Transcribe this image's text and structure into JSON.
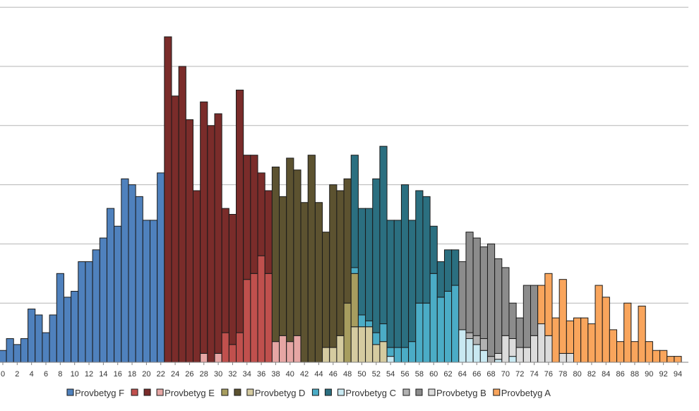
{
  "chart_data": {
    "type": "bar",
    "stacked": true,
    "grid": true,
    "legend_position": "bottom",
    "x_ticks": [
      "0",
      "2",
      "4",
      "6",
      "8",
      "10",
      "12",
      "14",
      "16",
      "18",
      "20",
      "22",
      "24",
      "26",
      "28",
      "30",
      "32",
      "34",
      "36",
      "38",
      "40",
      "42",
      "44",
      "46",
      "48",
      "50",
      "52",
      "54",
      "56",
      "58",
      "60",
      "62",
      "64",
      "66",
      "68",
      "70",
      "72",
      "74",
      "76",
      "78",
      "80",
      "82",
      "84",
      "86",
      "88",
      "90",
      "92",
      "94"
    ],
    "ylim": [
      0,
      11
    ],
    "y_gridlines": [
      1,
      2,
      3,
      4,
      5,
      6
    ],
    "series": [
      {
        "name": "Provbetyg F",
        "color": "#4f81bd",
        "legend_index": 0
      },
      {
        "name": "",
        "color": "#c0504d",
        "legend_index": 1
      },
      {
        "name": "",
        "color": "#7a2c2a",
        "legend_index": 2
      },
      {
        "name": "Provbetyg E",
        "color": "#e6a6a4",
        "legend_index": 3
      },
      {
        "name": "",
        "color": "#a79d5f",
        "legend_index": 4
      },
      {
        "name": "",
        "color": "#5c5230",
        "legend_index": 5
      },
      {
        "name": "Provbetyg D",
        "color": "#d5cba0",
        "legend_index": 6
      },
      {
        "name": "",
        "color": "#4bacc6",
        "legend_index": 7
      },
      {
        "name": "",
        "color": "#2b6f80",
        "legend_index": 8
      },
      {
        "name": "Provbetyg C",
        "color": "#c9e9f2",
        "legend_index": 9
      },
      {
        "name": "",
        "color": "#b2b2b2",
        "legend_index": 10
      },
      {
        "name": "",
        "color": "#8c8c8c",
        "legend_index": 11
      },
      {
        "name": "Provbetyg B",
        "color": "#dcdcdc",
        "legend_index": 12
      },
      {
        "name": "Provbetyg A",
        "color": "#f9a55c",
        "legend_index": 13
      }
    ],
    "bars": [
      {
        "x": 0,
        "s": [
          [
            0,
            0.2
          ]
        ]
      },
      {
        "x": 1,
        "s": [
          [
            0,
            0.4
          ]
        ]
      },
      {
        "x": 2,
        "s": [
          [
            0,
            0.3
          ]
        ]
      },
      {
        "x": 3,
        "s": [
          [
            0,
            0.4
          ]
        ]
      },
      {
        "x": 4,
        "s": [
          [
            0,
            0.9
          ]
        ]
      },
      {
        "x": 5,
        "s": [
          [
            0,
            0.8
          ]
        ]
      },
      {
        "x": 6,
        "s": [
          [
            0,
            0.5
          ]
        ]
      },
      {
        "x": 7,
        "s": [
          [
            0,
            0.8
          ]
        ]
      },
      {
        "x": 8,
        "s": [
          [
            0,
            1.5
          ]
        ]
      },
      {
        "x": 9,
        "s": [
          [
            0,
            1.1
          ]
        ]
      },
      {
        "x": 10,
        "s": [
          [
            0,
            1.2
          ]
        ]
      },
      {
        "x": 11,
        "s": [
          [
            0,
            1.7
          ]
        ]
      },
      {
        "x": 12,
        "s": [
          [
            0,
            1.7
          ]
        ]
      },
      {
        "x": 13,
        "s": [
          [
            0,
            1.9
          ]
        ]
      },
      {
        "x": 14,
        "s": [
          [
            0,
            2.1
          ]
        ]
      },
      {
        "x": 15,
        "s": [
          [
            0,
            2.6
          ]
        ]
      },
      {
        "x": 16,
        "s": [
          [
            0,
            2.3
          ]
        ]
      },
      {
        "x": 17,
        "s": [
          [
            0,
            3.1
          ]
        ]
      },
      {
        "x": 18,
        "s": [
          [
            0,
            3.0
          ]
        ]
      },
      {
        "x": 19,
        "s": [
          [
            0,
            2.8
          ]
        ]
      },
      {
        "x": 20,
        "s": [
          [
            0,
            2.4
          ]
        ]
      },
      {
        "x": 21,
        "s": [
          [
            0,
            2.4
          ]
        ]
      },
      {
        "x": 22,
        "s": [
          [
            0,
            3.2
          ]
        ]
      },
      {
        "x": 23,
        "s": [
          [
            2,
            5.5
          ]
        ]
      },
      {
        "x": 24,
        "s": [
          [
            2,
            4.5
          ]
        ]
      },
      {
        "x": 25,
        "s": [
          [
            2,
            5.0
          ]
        ]
      },
      {
        "x": 26,
        "s": [
          [
            2,
            4.1
          ]
        ]
      },
      {
        "x": 27,
        "s": [
          [
            2,
            2.9
          ]
        ]
      },
      {
        "x": 28,
        "s": [
          [
            3,
            0.15
          ],
          [
            2,
            4.25
          ]
        ]
      },
      {
        "x": 29,
        "s": [
          [
            2,
            4.0
          ]
        ]
      },
      {
        "x": 30,
        "s": [
          [
            3,
            0.15
          ],
          [
            2,
            4.05
          ]
        ]
      },
      {
        "x": 31,
        "s": [
          [
            1,
            0.5
          ],
          [
            2,
            2.1
          ]
        ]
      },
      {
        "x": 32,
        "s": [
          [
            1,
            0.3
          ],
          [
            2,
            2.2
          ]
        ]
      },
      {
        "x": 33,
        "s": [
          [
            1,
            0.5
          ],
          [
            2,
            4.1
          ]
        ]
      },
      {
        "x": 34,
        "s": [
          [
            1,
            1.4
          ],
          [
            2,
            2.1
          ]
        ]
      },
      {
        "x": 35,
        "s": [
          [
            1,
            1.5
          ],
          [
            2,
            2.0
          ]
        ]
      },
      {
        "x": 36,
        "s": [
          [
            1,
            1.8
          ],
          [
            2,
            1.4
          ]
        ]
      },
      {
        "x": 37,
        "s": [
          [
            1,
            1.5
          ],
          [
            2,
            1.4
          ]
        ]
      },
      {
        "x": 38,
        "s": [
          [
            3,
            0.35
          ],
          [
            5,
            2.95
          ]
        ]
      },
      {
        "x": 39,
        "s": [
          [
            3,
            0.45
          ],
          [
            5,
            2.35
          ]
        ]
      },
      {
        "x": 40,
        "s": [
          [
            3,
            0.35
          ],
          [
            5,
            3.1
          ]
        ]
      },
      {
        "x": 41,
        "s": [
          [
            3,
            0.45
          ],
          [
            5,
            2.8
          ]
        ]
      },
      {
        "x": 42,
        "s": [
          [
            5,
            2.7
          ]
        ]
      },
      {
        "x": 43,
        "s": [
          [
            5,
            3.5
          ]
        ]
      },
      {
        "x": 44,
        "s": [
          [
            5,
            2.7
          ]
        ]
      },
      {
        "x": 45,
        "s": [
          [
            6,
            0.25
          ],
          [
            5,
            1.95
          ]
        ]
      },
      {
        "x": 46,
        "s": [
          [
            6,
            0.25
          ],
          [
            5,
            2.75
          ]
        ]
      },
      {
        "x": 47,
        "s": [
          [
            6,
            0.45
          ],
          [
            5,
            2.45
          ]
        ]
      },
      {
        "x": 48,
        "s": [
          [
            4,
            1.0
          ],
          [
            5,
            2.1
          ]
        ]
      },
      {
        "x": 49,
        "s": [
          [
            6,
            0.6
          ],
          [
            4,
            0.9
          ],
          [
            7,
            0.1
          ],
          [
            8,
            1.9
          ]
        ]
      },
      {
        "x": 50,
        "s": [
          [
            6,
            0.6
          ],
          [
            7,
            0.2
          ],
          [
            8,
            1.8
          ]
        ]
      },
      {
        "x": 51,
        "s": [
          [
            6,
            0.6
          ],
          [
            7,
            0.1
          ],
          [
            8,
            1.9
          ]
        ]
      },
      {
        "x": 52,
        "s": [
          [
            6,
            0.3
          ],
          [
            7,
            0.2
          ],
          [
            8,
            2.6
          ]
        ]
      },
      {
        "x": 53,
        "s": [
          [
            6,
            0.35
          ],
          [
            7,
            0.3
          ],
          [
            8,
            3.0
          ]
        ]
      },
      {
        "x": 54,
        "s": [
          [
            9,
            0.1
          ],
          [
            7,
            0.15
          ],
          [
            8,
            2.15
          ]
        ]
      },
      {
        "x": 55,
        "s": [
          [
            7,
            0.25
          ],
          [
            8,
            2.15
          ]
        ]
      },
      {
        "x": 56,
        "s": [
          [
            7,
            0.25
          ],
          [
            8,
            2.75
          ]
        ]
      },
      {
        "x": 57,
        "s": [
          [
            7,
            0.35
          ],
          [
            8,
            2.05
          ]
        ]
      },
      {
        "x": 58,
        "s": [
          [
            7,
            1.0
          ],
          [
            8,
            1.9
          ]
        ]
      },
      {
        "x": 59,
        "s": [
          [
            7,
            1.0
          ],
          [
            8,
            1.8
          ]
        ]
      },
      {
        "x": 60,
        "s": [
          [
            7,
            1.5
          ],
          [
            8,
            0.8
          ]
        ]
      },
      {
        "x": 61,
        "s": [
          [
            7,
            1.1
          ],
          [
            8,
            0.6
          ]
        ]
      },
      {
        "x": 62,
        "s": [
          [
            7,
            1.2
          ],
          [
            8,
            0.7
          ]
        ]
      },
      {
        "x": 63,
        "s": [
          [
            7,
            1.3
          ],
          [
            8,
            0.6
          ]
        ]
      },
      {
        "x": 64,
        "s": [
          [
            9,
            0.55
          ],
          [
            11,
            1.15
          ]
        ]
      },
      {
        "x": 65,
        "s": [
          [
            9,
            0.4
          ],
          [
            10,
            0.1
          ],
          [
            11,
            1.7
          ]
        ]
      },
      {
        "x": 66,
        "s": [
          [
            9,
            0.3
          ],
          [
            10,
            0.15
          ],
          [
            11,
            1.65
          ]
        ]
      },
      {
        "x": 67,
        "s": [
          [
            9,
            0.2
          ],
          [
            10,
            0.2
          ],
          [
            11,
            1.55
          ]
        ]
      },
      {
        "x": 68,
        "s": [
          [
            10,
            0.1
          ],
          [
            11,
            1.9
          ]
        ]
      },
      {
        "x": 69,
        "s": [
          [
            9,
            0.05
          ],
          [
            12,
            0.1
          ],
          [
            11,
            1.6
          ]
        ]
      },
      {
        "x": 70,
        "s": [
          [
            12,
            0.45
          ],
          [
            11,
            1.15
          ]
        ]
      },
      {
        "x": 71,
        "s": [
          [
            9,
            0.1
          ],
          [
            12,
            0.3
          ],
          [
            11,
            0.6
          ]
        ]
      },
      {
        "x": 72,
        "s": [
          [
            12,
            0.25
          ],
          [
            11,
            0.5
          ]
        ]
      },
      {
        "x": 73,
        "s": [
          [
            12,
            0.25
          ],
          [
            11,
            1.05
          ]
        ]
      },
      {
        "x": 74,
        "s": [
          [
            12,
            0.45
          ],
          [
            11,
            0.85
          ]
        ]
      },
      {
        "x": 75,
        "s": [
          [
            12,
            0.65
          ],
          [
            13,
            0.65
          ]
        ]
      },
      {
        "x": 76,
        "s": [
          [
            12,
            0.45
          ],
          [
            13,
            1.05
          ]
        ]
      },
      {
        "x": 77,
        "s": [
          [
            13,
            0.75
          ]
        ]
      },
      {
        "x": 78,
        "s": [
          [
            12,
            0.15
          ],
          [
            13,
            1.25
          ]
        ]
      },
      {
        "x": 79,
        "s": [
          [
            12,
            0.15
          ],
          [
            13,
            0.55
          ]
        ]
      },
      {
        "x": 80,
        "s": [
          [
            13,
            0.75
          ]
        ]
      },
      {
        "x": 81,
        "s": [
          [
            13,
            0.75
          ]
        ]
      },
      {
        "x": 82,
        "s": [
          [
            13,
            0.65
          ]
        ]
      },
      {
        "x": 83,
        "s": [
          [
            13,
            1.3
          ]
        ]
      },
      {
        "x": 84,
        "s": [
          [
            13,
            1.1
          ]
        ]
      },
      {
        "x": 85,
        "s": [
          [
            13,
            0.55
          ]
        ]
      },
      {
        "x": 86,
        "s": [
          [
            13,
            0.35
          ]
        ]
      },
      {
        "x": 87,
        "s": [
          [
            13,
            1.0
          ]
        ]
      },
      {
        "x": 88,
        "s": [
          [
            13,
            0.35
          ]
        ]
      },
      {
        "x": 89,
        "s": [
          [
            13,
            0.95
          ]
        ]
      },
      {
        "x": 90,
        "s": [
          [
            13,
            0.35
          ]
        ]
      },
      {
        "x": 91,
        "s": [
          [
            13,
            0.2
          ]
        ]
      },
      {
        "x": 92,
        "s": [
          [
            13,
            0.2
          ]
        ]
      },
      {
        "x": 93,
        "s": [
          [
            13,
            0.1
          ]
        ]
      },
      {
        "x": 94,
        "s": [
          [
            13,
            0.1
          ]
        ]
      }
    ]
  }
}
